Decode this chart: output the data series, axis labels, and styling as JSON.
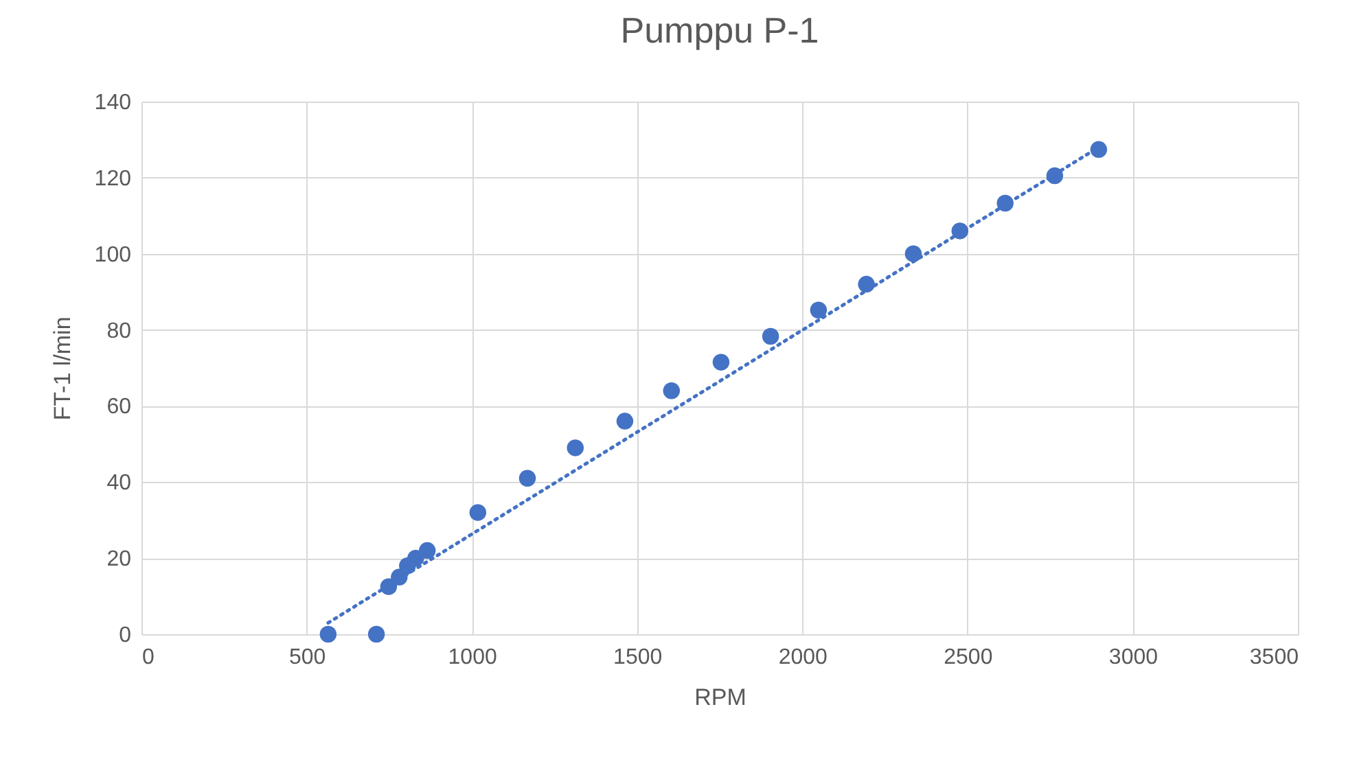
{
  "chart_data": {
    "type": "scatter",
    "title": "Pumppu P-1",
    "xlabel": "RPM",
    "ylabel": "FT-1 l/min",
    "x": [
      565,
      711,
      748,
      780,
      805,
      830,
      865,
      1018,
      1168,
      1313,
      1463,
      1604,
      1754,
      1904,
      2049,
      2194,
      2336,
      2477,
      2614,
      2764,
      2897
    ],
    "series": [
      {
        "marker": "circle",
        "color": "#4472c4",
        "values": [
          0,
          0,
          12.5,
          15,
          18,
          20,
          22,
          32,
          41,
          49,
          56,
          64,
          71.5,
          78.3,
          85.2,
          92,
          100,
          106,
          113.3,
          120.5,
          127.4
        ]
      },
      {
        "type": "line",
        "marker": "none",
        "line_style": "dotted",
        "color": "#4472c4",
        "x": [
          565,
          2897
        ],
        "values": [
          3,
          128
        ]
      }
    ],
    "xlim": [
      0,
      3500
    ],
    "xticks": [
      0,
      500,
      1000,
      1500,
      2000,
      2500,
      3000,
      3500
    ],
    "ylim": [
      0,
      140
    ],
    "yticks": [
      0,
      20,
      40,
      60,
      80,
      100,
      120,
      140
    ],
    "grid": true
  }
}
